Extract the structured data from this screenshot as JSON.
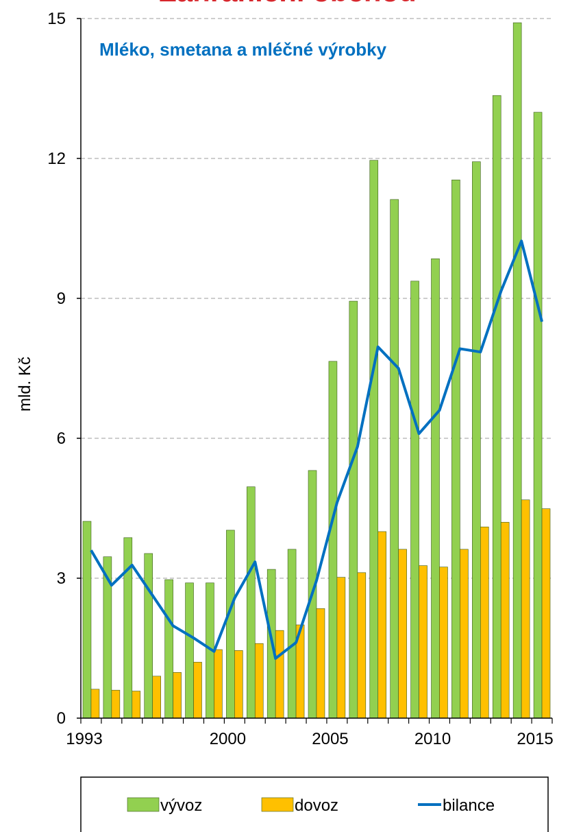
{
  "chart_data": {
    "type": "bar_line",
    "title": "Zahraniční obchod",
    "subtitle": "Mléko, smetana a mléčné výrobky",
    "y_label": "mld. Kč",
    "categories": [
      "1993",
      null,
      null,
      null,
      null,
      null,
      null,
      "2000",
      null,
      null,
      null,
      null,
      "2005",
      null,
      null,
      null,
      null,
      "2010",
      null,
      null,
      null,
      null,
      "2015"
    ],
    "series": [
      {
        "name": "vývoz",
        "type": "bar",
        "color": "#92d050",
        "values": [
          4.22,
          3.46,
          3.87,
          3.53,
          2.97,
          2.9,
          2.9,
          4.03,
          4.96,
          3.19,
          3.62,
          5.31,
          7.65,
          8.94,
          11.96,
          11.12,
          9.37,
          9.85,
          11.54,
          11.93,
          13.35,
          14.91,
          12.99
        ]
      },
      {
        "name": "dovoz",
        "type": "bar",
        "color": "#ffc000",
        "values": [
          0.62,
          0.6,
          0.58,
          0.9,
          0.98,
          1.2,
          1.47,
          1.45,
          1.6,
          1.88,
          2.0,
          2.35,
          3.02,
          3.12,
          4.0,
          3.62,
          3.27,
          3.24,
          3.62,
          4.1,
          4.2,
          4.68,
          4.49
        ]
      },
      {
        "name": "bilance",
        "type": "line",
        "color": "#0070c0",
        "values": [
          3.6,
          2.85,
          3.28,
          2.63,
          1.98,
          1.72,
          1.43,
          2.57,
          3.35,
          1.28,
          1.62,
          2.95,
          4.62,
          5.82,
          7.96,
          7.5,
          6.1,
          6.6,
          7.92,
          7.85,
          9.15,
          10.23,
          8.5
        ]
      }
    ],
    "ylim": [
      0,
      15
    ],
    "yticks": [
      0,
      3,
      6,
      9,
      12,
      15
    ],
    "grid": true,
    "legend": "bottom"
  }
}
